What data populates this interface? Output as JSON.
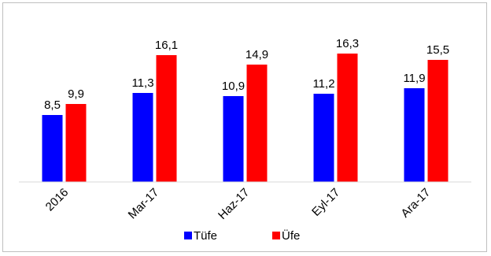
{
  "chart_data": {
    "type": "bar",
    "categories": [
      "2016",
      "Mar-17",
      "Haz-17",
      "Eyl-17",
      "Ara-17"
    ],
    "series": [
      {
        "name": "Tüfe",
        "color": "#0000ff",
        "values": [
          8.5,
          11.3,
          10.9,
          11.2,
          11.9
        ],
        "labels": [
          "8,5",
          "11,3",
          "10,9",
          "11,2",
          "11,9"
        ]
      },
      {
        "name": "Üfe",
        "color": "#ff0000",
        "values": [
          9.9,
          16.1,
          14.9,
          16.3,
          15.5
        ],
        "labels": [
          "9,9",
          "16,1",
          "14,9",
          "16,3",
          "15,5"
        ]
      }
    ],
    "ylim": [
      0,
      20
    ],
    "grid": false,
    "legend_position": "bottom",
    "axis_color": "#d9d9d9"
  }
}
